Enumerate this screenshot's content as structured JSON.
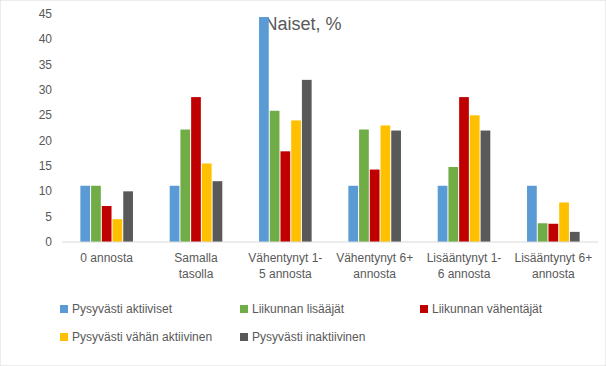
{
  "chart_data": {
    "type": "bar",
    "title": "Naiset, %",
    "categories": [
      "0 annosta",
      "Samalla tasolla",
      "Vähentynyt 1-5 annosta",
      "Vähentynyt 6+ annosta",
      "Lisääntynyt 1-6 annosta",
      "Lisääntynyt 6+ annosta"
    ],
    "series": [
      {
        "name": "Pysyvästi aktiiviset",
        "color": "#5b9bd5",
        "values": [
          11.1,
          11.1,
          44.4,
          11.1,
          11.1,
          11.1
        ]
      },
      {
        "name": "Liikunnan lisääjät",
        "color": "#70ad47",
        "values": [
          11.1,
          22.2,
          25.9,
          22.2,
          14.8,
          3.7
        ]
      },
      {
        "name": "Liikunnan vähentäjät",
        "color": "#c00000",
        "values": [
          7.1,
          28.6,
          17.9,
          14.3,
          28.6,
          3.6
        ]
      },
      {
        "name": "Pysyvästi vähän aktiivinen",
        "color": "#ffc000",
        "values": [
          4.5,
          15.5,
          24,
          23,
          25,
          7.8
        ]
      },
      {
        "name": "Pysyvästi inaktiivinen",
        "color": "#595959",
        "values": [
          10,
          12,
          32,
          22,
          22,
          2
        ]
      }
    ],
    "ylim": [
      0,
      45
    ],
    "yticks": [
      0,
      5,
      10,
      15,
      20,
      25,
      30,
      35,
      40,
      45
    ],
    "grid": false,
    "legend": "bottom"
  }
}
